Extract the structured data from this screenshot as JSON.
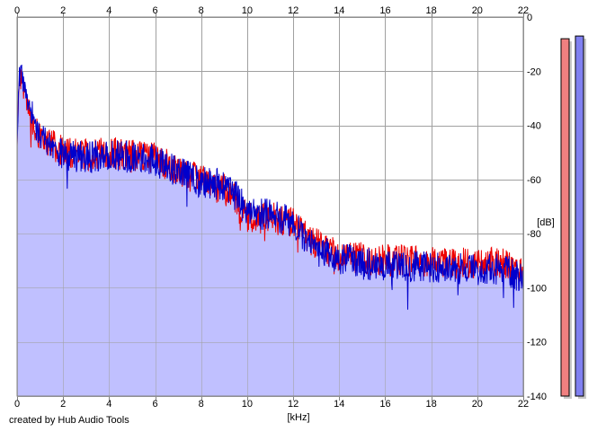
{
  "app": {
    "credit": "created by Hub Audio Tools"
  },
  "colors": {
    "fill": "#c0c0ff",
    "channel_a": "#ee0000",
    "channel_b": "#0000cc",
    "grid": "#a0a0a0",
    "meter_left": "#f08080",
    "meter_right": "#8080f0"
  },
  "chart_data": {
    "type": "line",
    "xlabel": "[kHz]",
    "ylabel": "[dB]",
    "xlim": [
      0,
      22
    ],
    "ylim": [
      -140,
      0
    ],
    "x_ticks": [
      "0",
      "2",
      "4",
      "6",
      "8",
      "10",
      "12",
      "14",
      "16",
      "18",
      "20",
      "22"
    ],
    "y_ticks": [
      "0",
      "-20",
      "-40",
      "-60",
      "-80",
      "-100",
      "-120",
      "-140"
    ],
    "grid": true,
    "series": [
      {
        "x": [
          0,
          0.1,
          0.2,
          0.3,
          0.5,
          0.8,
          1,
          1.5,
          2,
          3,
          4,
          5,
          6,
          7,
          8,
          9,
          9.5,
          10,
          11,
          12,
          13,
          14,
          15,
          16,
          17,
          18,
          19,
          20,
          21,
          22
        ],
        "values": [
          -45,
          -24,
          -22,
          -28,
          -34,
          -40,
          -44,
          -47,
          -50,
          -51,
          -50,
          -51,
          -52,
          -57,
          -60,
          -64,
          -67,
          -74,
          -74,
          -76,
          -84,
          -88,
          -89,
          -90,
          -90,
          -90,
          -91,
          -91,
          -91,
          -94
        ]
      },
      {
        "x": [
          0,
          0.1,
          0.2,
          0.3,
          0.5,
          0.8,
          1,
          1.5,
          2,
          3,
          4,
          5,
          6,
          7,
          8,
          9,
          9.5,
          10,
          11,
          12,
          13,
          14,
          15,
          16,
          17,
          18,
          19,
          20,
          21,
          22
        ],
        "values": [
          -45,
          -22,
          -20,
          -26,
          -33,
          -40,
          -44,
          -48,
          -51,
          -52,
          -51,
          -52,
          -53,
          -57,
          -61,
          -62,
          -66,
          -72,
          -73,
          -76,
          -86,
          -89,
          -91,
          -92,
          -92,
          -92,
          -93,
          -93,
          -93,
          -96
        ]
      }
    ],
    "meters": [
      {
        "level_db": -8
      },
      {
        "level_db": -7
      }
    ]
  }
}
